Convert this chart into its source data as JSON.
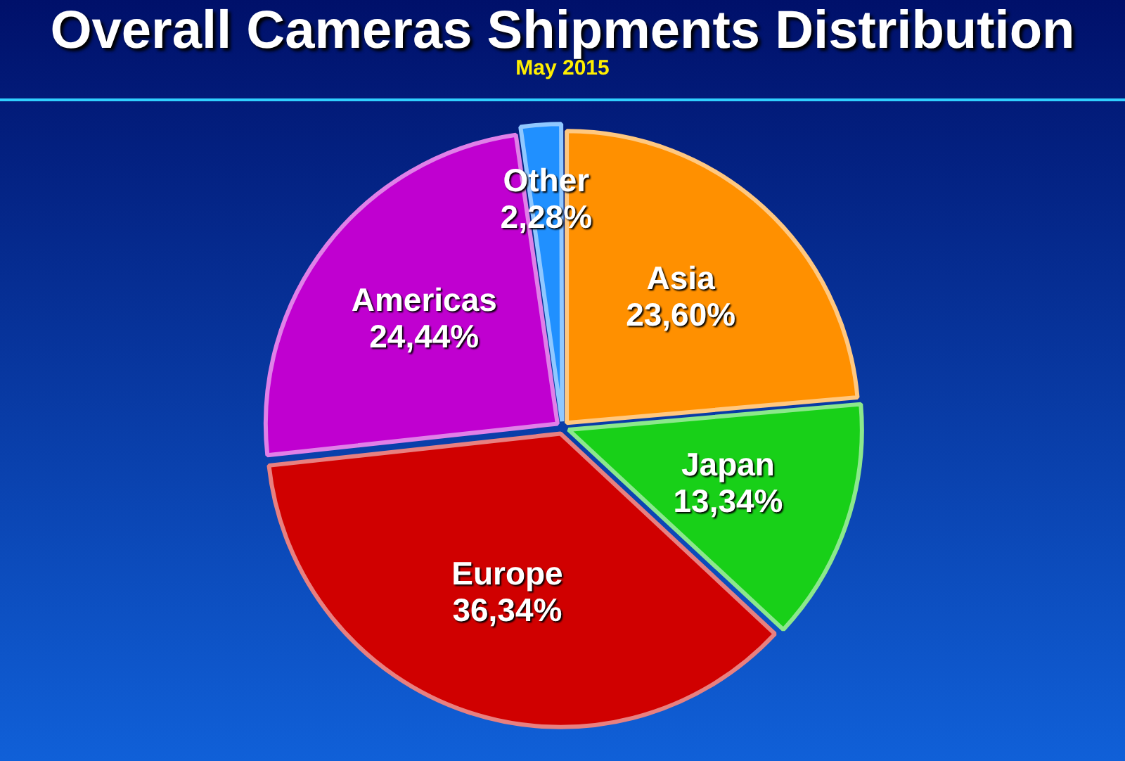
{
  "chart_data": {
    "type": "pie",
    "title": "Overall Cameras Shipments Distribution",
    "subtitle": "May 2015",
    "categories": [
      "Asia",
      "Japan",
      "Europe",
      "Americas",
      "Other"
    ],
    "values": [
      23.6,
      13.34,
      36.34,
      24.44,
      2.28
    ],
    "value_labels": [
      "23,60%",
      "13,34%",
      "36,34%",
      "24,44%",
      "2,28%"
    ],
    "colors": [
      "#ff9000",
      "#18d018",
      "#d00000",
      "#c000d0",
      "#2090ff"
    ],
    "legend": false
  }
}
